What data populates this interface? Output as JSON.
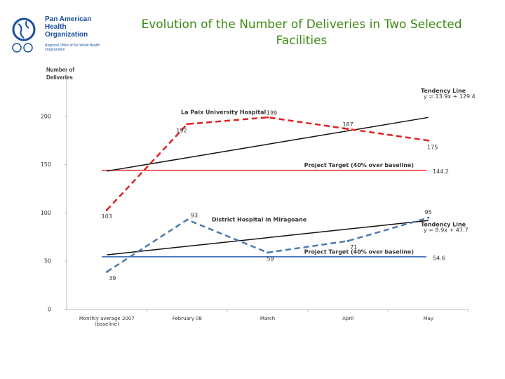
{
  "logo": {
    "name": "Pan American Health Organization",
    "subtitle": "Regional Office of the World Health Organization"
  },
  "chart_data": {
    "type": "line",
    "title": "Evolution of the Number of Deliveries in Two Selected Facilities",
    "y_label": "Number of Deliveries",
    "categories": [
      "Monthly average 2007 (baseline)",
      "February 08",
      "March",
      "April",
      "May"
    ],
    "ylim": [
      0,
      250
    ],
    "yticks": [
      0,
      50,
      100,
      150,
      200
    ],
    "series": [
      {
        "name": "La Paix University Hospital",
        "color": "#e02020",
        "values": [
          103,
          192,
          199,
          187,
          175
        ],
        "target": {
          "label": "Project Target (40% over baseline)",
          "value": 144.2,
          "color": "#e03030"
        },
        "trend": {
          "label": "Tendency Line",
          "equation": "y = 13.9x + 129.4",
          "slope": 13.9,
          "intercept": 129.4
        }
      },
      {
        "name": "District Hospital in Miragoane",
        "color": "#4a7ab0",
        "values": [
          39,
          93,
          59,
          71,
          95
        ],
        "target": {
          "label": "Project Target (40% over baseline)",
          "value": 54.6,
          "color": "#2a62b0"
        },
        "trend": {
          "label": "Tendency Line",
          "equation": "y = 8.9x + 47.7",
          "slope": 8.9,
          "intercept": 47.7
        }
      }
    ]
  }
}
